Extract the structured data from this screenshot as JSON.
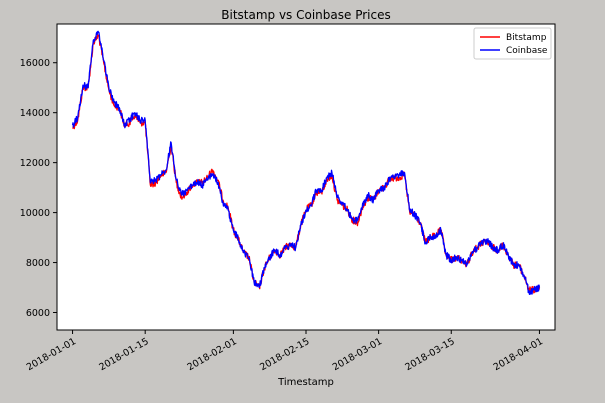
{
  "chart_data": {
    "type": "line",
    "title": "Bitstamp vs Coinbase Prices",
    "xlabel": "Timestamp",
    "ylabel": "",
    "x_range": [
      "2017-12-29",
      "2018-04-04"
    ],
    "ylim": [
      5300,
      17550
    ],
    "x_ticks": [
      {
        "date": "2018-01-01",
        "label": "2018-01-01"
      },
      {
        "date": "2018-01-15",
        "label": "2018-01-15"
      },
      {
        "date": "2018-02-01",
        "label": "2018-02-01"
      },
      {
        "date": "2018-02-15",
        "label": "2018-02-15"
      },
      {
        "date": "2018-03-01",
        "label": "2018-03-01"
      },
      {
        "date": "2018-03-15",
        "label": "2018-03-15"
      },
      {
        "date": "2018-04-01",
        "label": "2018-04-01"
      }
    ],
    "y_ticks": [
      6000,
      8000,
      10000,
      12000,
      14000,
      16000
    ],
    "grid": false,
    "legend": "top-right",
    "series": [
      {
        "name": "Bitstamp",
        "color": "#ff0000",
        "x": [
          "2018-01-01",
          "2018-01-02",
          "2018-01-03",
          "2018-01-04",
          "2018-01-05",
          "2018-01-06",
          "2018-01-07",
          "2018-01-08",
          "2018-01-09",
          "2018-01-10",
          "2018-01-11",
          "2018-01-12",
          "2018-01-13",
          "2018-01-14",
          "2018-01-15",
          "2018-01-16",
          "2018-01-17",
          "2018-01-18",
          "2018-01-19",
          "2018-01-20",
          "2018-01-21",
          "2018-01-22",
          "2018-01-23",
          "2018-01-24",
          "2018-01-25",
          "2018-01-26",
          "2018-01-27",
          "2018-01-28",
          "2018-01-29",
          "2018-01-30",
          "2018-01-31",
          "2018-02-01",
          "2018-02-02",
          "2018-02-03",
          "2018-02-04",
          "2018-02-05",
          "2018-02-06",
          "2018-02-07",
          "2018-02-08",
          "2018-02-09",
          "2018-02-10",
          "2018-02-11",
          "2018-02-12",
          "2018-02-13",
          "2018-02-14",
          "2018-02-15",
          "2018-02-16",
          "2018-02-17",
          "2018-02-18",
          "2018-02-19",
          "2018-02-20",
          "2018-02-21",
          "2018-02-22",
          "2018-02-23",
          "2018-02-24",
          "2018-02-25",
          "2018-02-26",
          "2018-02-27",
          "2018-02-28",
          "2018-03-01",
          "2018-03-02",
          "2018-03-03",
          "2018-03-04",
          "2018-03-05",
          "2018-03-06",
          "2018-03-07",
          "2018-03-08",
          "2018-03-09",
          "2018-03-10",
          "2018-03-11",
          "2018-03-12",
          "2018-03-13",
          "2018-03-14",
          "2018-03-15",
          "2018-03-16",
          "2018-03-17",
          "2018-03-18",
          "2018-03-19",
          "2018-03-20",
          "2018-03-21",
          "2018-03-22",
          "2018-03-23",
          "2018-03-24",
          "2018-03-25",
          "2018-03-26",
          "2018-03-27",
          "2018-03-28",
          "2018-03-29",
          "2018-03-30",
          "2018-03-31",
          "2018-04-01"
        ],
        "y": [
          13400,
          13700,
          15000,
          15000,
          16800,
          17100,
          16000,
          14900,
          14300,
          14200,
          13500,
          13600,
          13900,
          13600,
          13600,
          11100,
          11200,
          11500,
          11600,
          12700,
          11200,
          10600,
          10800,
          11100,
          11200,
          11200,
          11400,
          11700,
          11300,
          10500,
          10200,
          9300,
          8900,
          8400,
          8200,
          7200,
          7000,
          7800,
          8200,
          8500,
          8300,
          8600,
          8700,
          8600,
          9500,
          10100,
          10300,
          10800,
          10800,
          11300,
          11500,
          10500,
          10300,
          10100,
          9700,
          9600,
          10300,
          10600,
          10500,
          10900,
          11000,
          11300,
          11400,
          11400,
          11500,
          10000,
          9900,
          9600,
          8800,
          9000,
          9100,
          9300,
          8300,
          8100,
          8200,
          8100,
          7900,
          8400,
          8600,
          8800,
          8800,
          8600,
          8500,
          8700,
          8300,
          7900,
          7900,
          7500,
          6900,
          6900,
          7000
        ]
      },
      {
        "name": "Coinbase",
        "color": "#0000ff",
        "x": [
          "2018-01-01",
          "2018-01-02",
          "2018-01-03",
          "2018-01-04",
          "2018-01-05",
          "2018-01-06",
          "2018-01-07",
          "2018-01-08",
          "2018-01-09",
          "2018-01-10",
          "2018-01-11",
          "2018-01-12",
          "2018-01-13",
          "2018-01-14",
          "2018-01-15",
          "2018-01-16",
          "2018-01-17",
          "2018-01-18",
          "2018-01-19",
          "2018-01-20",
          "2018-01-21",
          "2018-01-22",
          "2018-01-23",
          "2018-01-24",
          "2018-01-25",
          "2018-01-26",
          "2018-01-27",
          "2018-01-28",
          "2018-01-29",
          "2018-01-30",
          "2018-01-31",
          "2018-02-01",
          "2018-02-02",
          "2018-02-03",
          "2018-02-04",
          "2018-02-05",
          "2018-02-06",
          "2018-02-07",
          "2018-02-08",
          "2018-02-09",
          "2018-02-10",
          "2018-02-11",
          "2018-02-12",
          "2018-02-13",
          "2018-02-14",
          "2018-02-15",
          "2018-02-16",
          "2018-02-17",
          "2018-02-18",
          "2018-02-19",
          "2018-02-20",
          "2018-02-21",
          "2018-02-22",
          "2018-02-23",
          "2018-02-24",
          "2018-02-25",
          "2018-02-26",
          "2018-02-27",
          "2018-02-28",
          "2018-03-01",
          "2018-03-02",
          "2018-03-03",
          "2018-03-04",
          "2018-03-05",
          "2018-03-06",
          "2018-03-07",
          "2018-03-08",
          "2018-03-09",
          "2018-03-10",
          "2018-03-11",
          "2018-03-12",
          "2018-03-13",
          "2018-03-14",
          "2018-03-15",
          "2018-03-16",
          "2018-03-17",
          "2018-03-18",
          "2018-03-19",
          "2018-03-20",
          "2018-03-21",
          "2018-03-22",
          "2018-03-23",
          "2018-03-24",
          "2018-03-25",
          "2018-03-26",
          "2018-03-27",
          "2018-03-28",
          "2018-03-29",
          "2018-03-30",
          "2018-03-31",
          "2018-04-01"
        ],
        "y": [
          13500,
          13800,
          15100,
          15000,
          16900,
          17200,
          16100,
          15000,
          14400,
          14200,
          13500,
          13700,
          14000,
          13700,
          13700,
          11200,
          11300,
          11500,
          11700,
          12800,
          11300,
          10700,
          10900,
          11100,
          11200,
          11100,
          11300,
          11500,
          11200,
          10400,
          10100,
          9300,
          8900,
          8400,
          8200,
          7200,
          7000,
          7800,
          8200,
          8500,
          8300,
          8600,
          8700,
          8600,
          9500,
          10100,
          10300,
          10900,
          10900,
          11400,
          11600,
          10600,
          10400,
          10100,
          9700,
          9700,
          10300,
          10700,
          10500,
          10900,
          11000,
          11300,
          11400,
          11500,
          11600,
          10100,
          9900,
          9600,
          8800,
          9000,
          9100,
          9300,
          8300,
          8100,
          8200,
          8100,
          7900,
          8400,
          8600,
          8800,
          8900,
          8600,
          8500,
          8700,
          8300,
          7900,
          7900,
          7500,
          6800,
          6900,
          7000
        ]
      }
    ]
  }
}
